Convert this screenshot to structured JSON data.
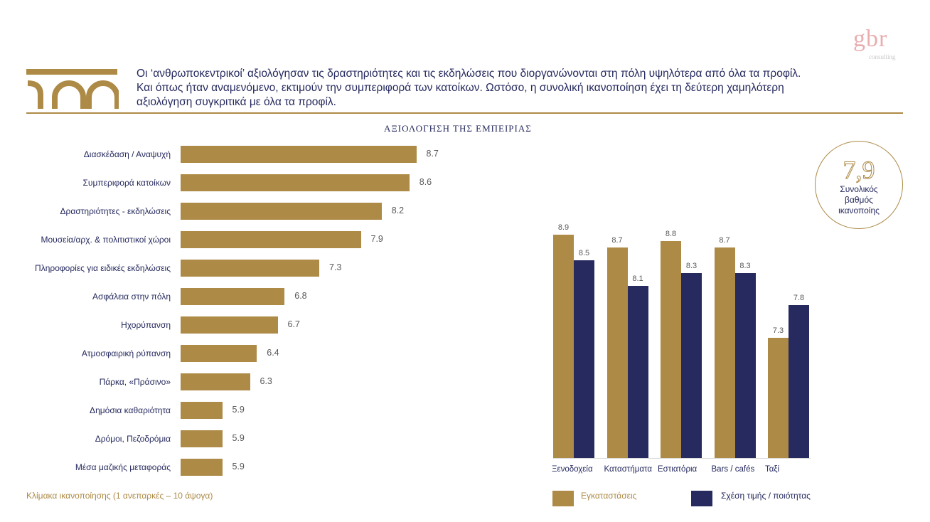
{
  "brand": {
    "logo_text": "gbr",
    "logo_sub": "consulting",
    "accent": "#ad8a46",
    "navy": "#262a5e",
    "logo_color": "#e8aeb0"
  },
  "headline": "Οι ‘ανθρωποκεντρικοί’ αξιολόγησαν τις δραστηριότητες και τις εκδηλώσεις που διοργανώνονται στη πόλη υψηλότερα από όλα τα προφίλ. Και όπως ήταν αναμενόμενο, εκτιμούν την συμπεριφορά των κατοίκων. Ωστόσο, η συνολική ικανοποίηση έχει τη δεύτερη χαμηλότερη αξιολόγηση συγκριτικά με όλα τα προφίλ.",
  "overall": {
    "score": "7,9",
    "label_lines": [
      "Συνολικός",
      "βαθμός",
      "ικανοποίης"
    ]
  },
  "scale_note": "Κλίμακα ικανοποίησης (1 ανεπαρκές – 10 άψογα)",
  "chart_data": [
    {
      "type": "bar",
      "orientation": "horizontal",
      "title": "ΑΞΙΟΛΟΓΗΣΗ ΤΗΣ ΕΜΠΕΙΡΙΑΣ",
      "categories": [
        "Διασκέδαση / Αναψυχή",
        "Συμπεριφορά κατοίκων",
        "Δραστηριότητες - εκδηλώσεις",
        "Μουσεία/αρχ. & πολιτιστικοί χώροι",
        "Πληροφορίες για ειδικές εκδηλώσεις",
        "Ασφάλεια στην πόλη",
        "Ηχορύπανση",
        "Ατμοσφαιρική ρύπανση",
        "Πάρκα, «Πράσινο»",
        "Δημόσια καθαριότητα",
        "Δρόμοι, Πεζοδρόμια",
        "Μέσα μαζικής μεταφοράς"
      ],
      "values": [
        8.7,
        8.6,
        8.2,
        7.9,
        7.3,
        6.8,
        6.7,
        6.4,
        6.3,
        5.9,
        5.9,
        5.9
      ],
      "labels": [
        "8.7",
        "8.6",
        "8.2",
        "7.9",
        "7.3",
        "6.8",
        "6.7",
        "6.4",
        "6.3",
        "5.9",
        "5.9",
        "5.9"
      ],
      "xlabel": "",
      "ylabel": "",
      "xlim": [
        5.3,
        10
      ],
      "grid": false,
      "color": "#ad8a46"
    },
    {
      "type": "bar",
      "orientation": "vertical",
      "categories": [
        "Ξενοδοχεία",
        "Καταστήματα",
        "Εστιατόρια",
        "Bars / cafés",
        "Ταξί"
      ],
      "series": [
        {
          "name": "Εγκαταστάσεις",
          "values": [
            8.9,
            8.7,
            8.8,
            8.7,
            7.3
          ],
          "labels": [
            "8.9",
            "8.7",
            "8.8",
            "8.7",
            "7.3"
          ],
          "color": "#ad8a46"
        },
        {
          "name": "Σχέση τιμής / ποιότητας",
          "values": [
            8.5,
            8.1,
            8.3,
            8.3,
            7.8
          ],
          "labels": [
            "8.5",
            "8.1",
            "8.3",
            "8.3",
            "7.8"
          ],
          "color": "#262a5e"
        }
      ],
      "ylim": [
        5.43,
        10
      ],
      "grid": false,
      "legend": "bottom"
    }
  ]
}
